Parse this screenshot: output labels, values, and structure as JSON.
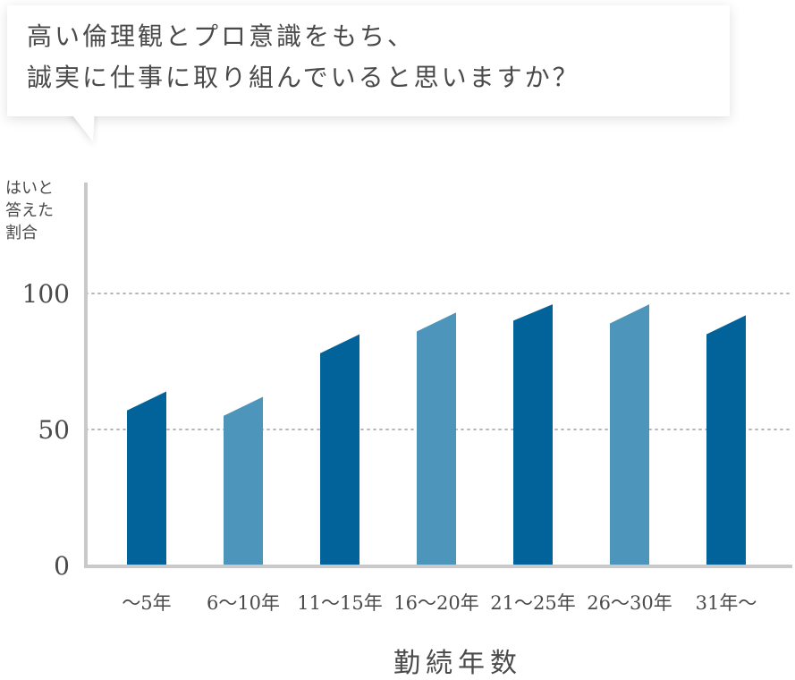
{
  "question": {
    "line1": "高い倫理観とプロ意識をもち、",
    "line2": "誠実に仕事に取り組んでいると思いますか？"
  },
  "chart_data": {
    "type": "bar",
    "ylabel_lines": [
      "はいと",
      "答えた",
      "割合"
    ],
    "xlabel": "勤続年数",
    "categories": [
      "〜5年",
      "6〜10年",
      "11〜15年",
      "16〜20年",
      "21〜25年",
      "26〜30年",
      "31年〜"
    ],
    "values": [
      {
        "left": 57,
        "right": 64
      },
      {
        "left": 55,
        "right": 62
      },
      {
        "left": 78,
        "right": 85
      },
      {
        "left": 86,
        "right": 93
      },
      {
        "left": 90,
        "right": 96
      },
      {
        "left": 89,
        "right": 96
      },
      {
        "left": 85,
        "right": 92
      }
    ],
    "ylim": [
      0,
      100
    ],
    "yticks": [
      0,
      50,
      100
    ],
    "gridlines": [
      50,
      100
    ],
    "colors": {
      "dark": "#02639a",
      "light": "#4d95ba",
      "axis": "#c9c9c9",
      "grid": "#b7b7b7",
      "text": "#4a4a4a"
    },
    "bar_colors": [
      "dark",
      "light",
      "dark",
      "light",
      "dark",
      "light",
      "dark"
    ]
  }
}
